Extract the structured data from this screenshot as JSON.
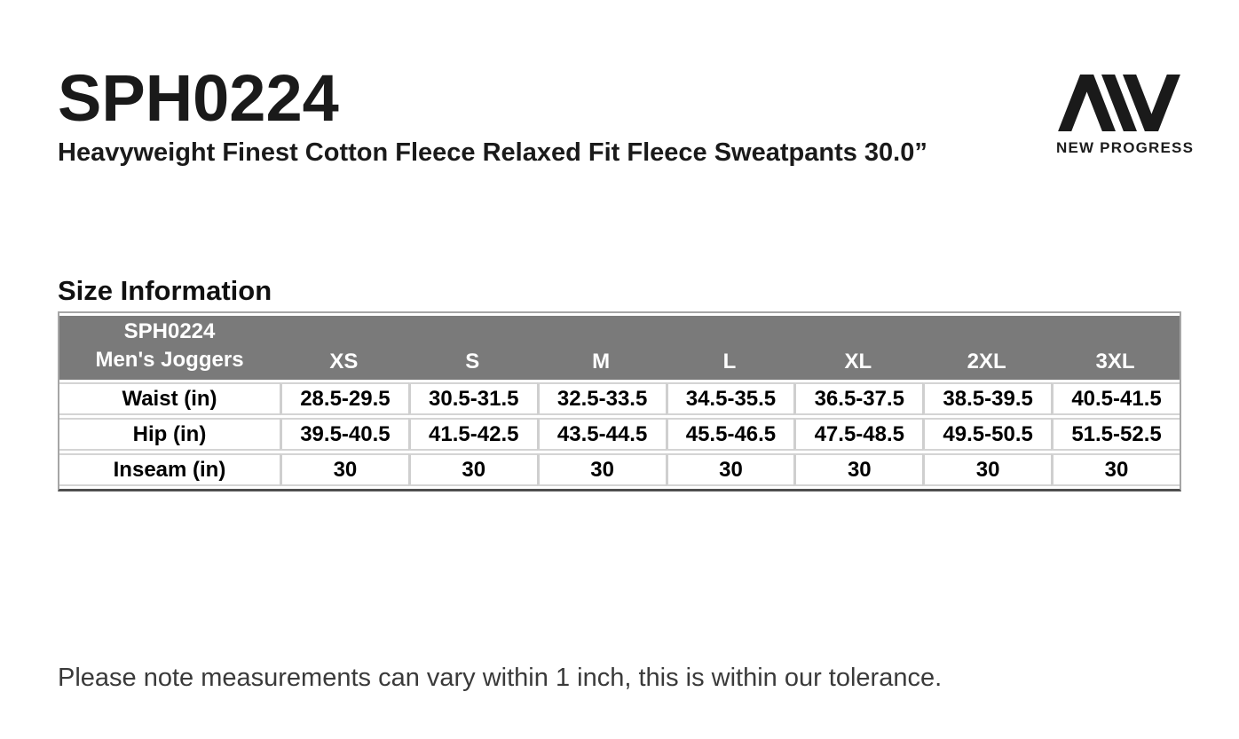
{
  "page": {
    "product_code": "SPH0224",
    "product_name": "Heavyweight Finest Cotton Fleece Relaxed Fit Fleece Sweatpants 30.0”",
    "section_title": "Size Information",
    "note": "Please note measurements can vary within 1 inch, this is within our tolerance."
  },
  "logo": {
    "brand": "NEW PROGRESS",
    "mark": "aw-monogram"
  },
  "size_table": {
    "header": {
      "line1": "SPH0224",
      "line2": "Men's Joggers"
    },
    "sizes": [
      "XS",
      "S",
      "M",
      "L",
      "XL",
      "2XL",
      "3XL"
    ],
    "rows": [
      {
        "label": "Waist (in)",
        "values": [
          "28.5-29.5",
          "30.5-31.5",
          "32.5-33.5",
          "34.5-35.5",
          "36.5-37.5",
          "38.5-39.5",
          "40.5-41.5"
        ]
      },
      {
        "label": "Hip (in)",
        "values": [
          "39.5-40.5",
          "41.5-42.5",
          "43.5-44.5",
          "45.5-46.5",
          "47.5-48.5",
          "49.5-50.5",
          "51.5-52.5"
        ]
      },
      {
        "label": "Inseam (in)",
        "values": [
          "30",
          "30",
          "30",
          "30",
          "30",
          "30",
          "30"
        ]
      }
    ]
  },
  "colors": {
    "header_bg": "#7a7a7a",
    "header_text": "#ffffff",
    "cell_border": "#d4d4d4",
    "column_border": "#cfcfcf",
    "table_outer_border": "#a6a6a6",
    "table_bottom_border": "#4f4f4f",
    "logo_ink": "#1a1a1a"
  }
}
